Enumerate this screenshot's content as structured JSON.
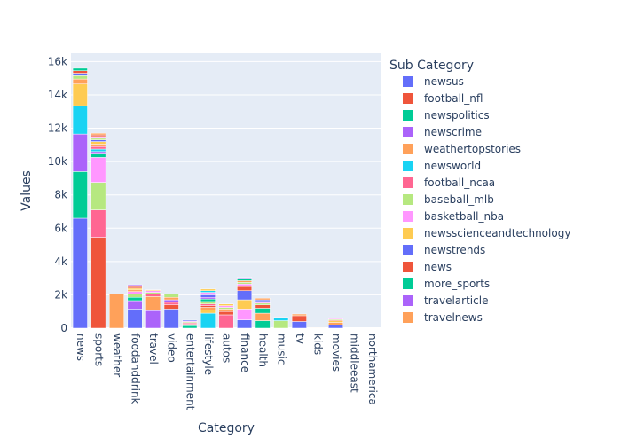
{
  "chart_data": {
    "type": "bar",
    "barmode": "stack",
    "xlabel": "Category",
    "ylabel": "Values",
    "legend_title": "Sub Category",
    "legend_position": "right",
    "ylim": [
      0,
      16500
    ],
    "yticks": [
      0,
      2000,
      4000,
      6000,
      8000,
      10000,
      12000,
      14000,
      16000
    ],
    "ytick_labels": [
      "0",
      "2k",
      "4k",
      "6k",
      "8k",
      "10k",
      "12k",
      "14k",
      "16k"
    ],
    "grid": true,
    "plot_background": "#e5ecf6",
    "categories": [
      "news",
      "sports",
      "weather",
      "foodanddrink",
      "travel",
      "video",
      "entertainment",
      "lifestyle",
      "autos",
      "finance",
      "health",
      "music",
      "tv",
      "kids",
      "movies",
      "middleeast",
      "northamerica"
    ],
    "series": [
      {
        "name": "newsus",
        "color": "#636efa",
        "values": [
          6600,
          0,
          0,
          1150,
          0,
          0,
          0,
          0,
          0,
          500,
          0,
          0,
          0,
          0,
          200,
          0,
          0
        ]
      },
      {
        "name": "football_nfl",
        "color": "#EF553B",
        "values": [
          0,
          5450,
          0,
          0,
          0,
          0,
          0,
          0,
          0,
          0,
          0,
          0,
          0,
          0,
          0,
          0,
          0
        ]
      },
      {
        "name": "newspolitics",
        "color": "#00cc96",
        "values": [
          2800,
          0,
          0,
          0,
          0,
          0,
          0,
          0,
          0,
          0,
          0,
          0,
          0,
          0,
          0,
          0,
          0
        ]
      },
      {
        "name": "newscrime",
        "color": "#ab63fa",
        "values": [
          2250,
          0,
          0,
          0,
          0,
          0,
          0,
          0,
          0,
          0,
          0,
          0,
          0,
          0,
          0,
          0,
          0
        ]
      },
      {
        "name": "weathertopstories",
        "color": "#FFA15A",
        "values": [
          0,
          0,
          2050,
          0,
          0,
          0,
          0,
          0,
          0,
          0,
          0,
          0,
          0,
          0,
          0,
          0,
          0
        ]
      },
      {
        "name": "newsworld",
        "color": "#19d3f3",
        "values": [
          1700,
          0,
          0,
          0,
          0,
          0,
          0,
          0,
          0,
          0,
          0,
          0,
          0,
          0,
          0,
          0,
          0
        ]
      },
      {
        "name": "football_ncaa",
        "color": "#FF6692",
        "values": [
          0,
          1650,
          0,
          0,
          0,
          0,
          0,
          0,
          0,
          0,
          0,
          0,
          0,
          0,
          0,
          0,
          0
        ]
      },
      {
        "name": "baseball_mlb",
        "color": "#B6E880",
        "values": [
          0,
          1650,
          0,
          0,
          0,
          0,
          0,
          0,
          0,
          0,
          0,
          0,
          0,
          0,
          0,
          0,
          0
        ]
      },
      {
        "name": "basketball_nba",
        "color": "#FF97FF",
        "values": [
          0,
          1500,
          0,
          0,
          0,
          0,
          0,
          0,
          0,
          0,
          0,
          0,
          0,
          0,
          0,
          0,
          0
        ]
      },
      {
        "name": "newsscienceandtechnology",
        "color": "#FECB52",
        "values": [
          1300,
          0,
          0,
          0,
          0,
          0,
          0,
          0,
          0,
          0,
          0,
          0,
          0,
          0,
          0,
          0,
          0
        ]
      },
      {
        "name": "newstrends",
        "color": "#636efa",
        "values": [
          0,
          0,
          0,
          0,
          0,
          0,
          0,
          0,
          0,
          0,
          0,
          0,
          0,
          0,
          0,
          0,
          0
        ]
      },
      {
        "name": "news",
        "color": "#EF553B",
        "values": [
          0,
          0,
          0,
          0,
          0,
          0,
          0,
          0,
          0,
          0,
          0,
          0,
          0,
          0,
          0,
          0,
          0
        ]
      },
      {
        "name": "more_sports",
        "color": "#00cc96",
        "values": [
          0,
          0,
          0,
          0,
          0,
          0,
          0,
          0,
          0,
          0,
          0,
          0,
          0,
          0,
          0,
          0,
          0
        ]
      },
      {
        "name": "travelarticle",
        "color": "#ab63fa",
        "values": [
          0,
          0,
          0,
          0,
          0,
          0,
          0,
          0,
          0,
          0,
          0,
          0,
          0,
          0,
          0,
          0,
          0
        ]
      },
      {
        "name": "travelnews",
        "color": "#FFA15A",
        "values": [
          0,
          0,
          0,
          0,
          0,
          0,
          0,
          0,
          0,
          0,
          0,
          0,
          0,
          0,
          0,
          0,
          0
        ]
      }
    ],
    "other_segments": [
      {
        "category": "news",
        "color": "#FFA15A",
        "value": 300
      },
      {
        "category": "news",
        "color": "#B6E880",
        "value": 200
      },
      {
        "category": "news",
        "color": "#636efa",
        "value": 150
      },
      {
        "category": "news",
        "color": "#EF553B",
        "value": 150
      },
      {
        "category": "news",
        "color": "#00cc96",
        "value": 150
      },
      {
        "category": "sports",
        "color": "#00cc96",
        "value": 200
      },
      {
        "category": "sports",
        "color": "#ab63fa",
        "value": 150
      },
      {
        "category": "sports",
        "color": "#19d3f3",
        "value": 150
      },
      {
        "category": "sports",
        "color": "#FF6692",
        "value": 150
      },
      {
        "category": "sports",
        "color": "#FFA15A",
        "value": 150
      },
      {
        "category": "sports",
        "color": "#FECB52",
        "value": 150
      },
      {
        "category": "sports",
        "color": "#636efa",
        "value": 100
      },
      {
        "category": "sports",
        "color": "#B6E880",
        "value": 100
      },
      {
        "category": "sports",
        "color": "#FF97FF",
        "value": 100
      },
      {
        "category": "sports",
        "color": "#EF553B",
        "value": 100
      },
      {
        "category": "sports",
        "color": "#FFA15A",
        "value": 100
      },
      {
        "category": "foodanddrink",
        "color": "#ab63fa",
        "value": 500
      },
      {
        "category": "foodanddrink",
        "color": "#00cc96",
        "value": 200
      },
      {
        "category": "foodanddrink",
        "color": "#B6E880",
        "value": 200
      },
      {
        "category": "foodanddrink",
        "color": "#FF97FF",
        "value": 150
      },
      {
        "category": "foodanddrink",
        "color": "#FFA15A",
        "value": 100
      },
      {
        "category": "foodanddrink",
        "color": "#FECB52",
        "value": 100
      },
      {
        "category": "foodanddrink",
        "color": "#EF553B",
        "value": 100
      },
      {
        "category": "foodanddrink",
        "color": "#ab63fa",
        "value": 100
      },
      {
        "category": "travel",
        "color": "#ab63fa",
        "value": 1050
      },
      {
        "category": "travel",
        "color": "#FFA15A",
        "value": 850
      },
      {
        "category": "travel",
        "color": "#FF6692",
        "value": 150
      },
      {
        "category": "travel",
        "color": "#B6E880",
        "value": 100
      },
      {
        "category": "travel",
        "color": "#FF97FF",
        "value": 100
      },
      {
        "category": "travel",
        "color": "#FECB52",
        "value": 50
      },
      {
        "category": "video",
        "color": "#636efa",
        "value": 1150
      },
      {
        "category": "video",
        "color": "#EF553B",
        "value": 250
      },
      {
        "category": "video",
        "color": "#FF6692",
        "value": 150
      },
      {
        "category": "video",
        "color": "#ab63fa",
        "value": 150
      },
      {
        "category": "video",
        "color": "#FFA15A",
        "value": 150
      },
      {
        "category": "video",
        "color": "#B6E880",
        "value": 200
      },
      {
        "category": "entertainment",
        "color": "#00cc96",
        "value": 150
      },
      {
        "category": "entertainment",
        "color": "#FFA15A",
        "value": 80
      },
      {
        "category": "entertainment",
        "color": "#FF6692",
        "value": 80
      },
      {
        "category": "entertainment",
        "color": "#B6E880",
        "value": 60
      },
      {
        "category": "entertainment",
        "color": "#FF97FF",
        "value": 50
      },
      {
        "category": "entertainment",
        "color": "#636efa",
        "value": 60
      },
      {
        "category": "lifestyle",
        "color": "#19d3f3",
        "value": 900
      },
      {
        "category": "lifestyle",
        "color": "#FECB52",
        "value": 200
      },
      {
        "category": "lifestyle",
        "color": "#FFA15A",
        "value": 150
      },
      {
        "category": "lifestyle",
        "color": "#EF553B",
        "value": 100
      },
      {
        "category": "lifestyle",
        "color": "#FF6692",
        "value": 100
      },
      {
        "category": "lifestyle",
        "color": "#B6E880",
        "value": 150
      },
      {
        "category": "lifestyle",
        "color": "#00cc96",
        "value": 150
      },
      {
        "category": "lifestyle",
        "color": "#ab63fa",
        "value": 100
      },
      {
        "category": "lifestyle",
        "color": "#636efa",
        "value": 150
      },
      {
        "category": "lifestyle",
        "color": "#FF97FF",
        "value": 150
      },
      {
        "category": "lifestyle",
        "color": "#19d3f3",
        "value": 100
      },
      {
        "category": "lifestyle",
        "color": "#FECB52",
        "value": 100
      },
      {
        "category": "autos",
        "color": "#FF6692",
        "value": 800
      },
      {
        "category": "autos",
        "color": "#EF553B",
        "value": 200
      },
      {
        "category": "autos",
        "color": "#FFA15A",
        "value": 150
      },
      {
        "category": "autos",
        "color": "#B6E880",
        "value": 100
      },
      {
        "category": "autos",
        "color": "#FF97FF",
        "value": 100
      },
      {
        "category": "autos",
        "color": "#FECB52",
        "value": 100
      },
      {
        "category": "finance",
        "color": "#FF97FF",
        "value": 650
      },
      {
        "category": "finance",
        "color": "#FECB52",
        "value": 550
      },
      {
        "category": "finance",
        "color": "#636efa",
        "value": 550
      },
      {
        "category": "finance",
        "color": "#EF553B",
        "value": 250
      },
      {
        "category": "finance",
        "color": "#FF97FF",
        "value": 150
      },
      {
        "category": "finance",
        "color": "#B6E880",
        "value": 100
      },
      {
        "category": "finance",
        "color": "#FFA15A",
        "value": 100
      },
      {
        "category": "finance",
        "color": "#00cc96",
        "value": 100
      },
      {
        "category": "finance",
        "color": "#ab63fa",
        "value": 100
      },
      {
        "category": "health",
        "color": "#00cc96",
        "value": 450
      },
      {
        "category": "health",
        "color": "#FFA15A",
        "value": 450
      },
      {
        "category": "health",
        "color": "#00cc96",
        "value": 300
      },
      {
        "category": "health",
        "color": "#EF553B",
        "value": 200
      },
      {
        "category": "health",
        "color": "#B6E880",
        "value": 100
      },
      {
        "category": "health",
        "color": "#FF97FF",
        "value": 100
      },
      {
        "category": "health",
        "color": "#636efa",
        "value": 100
      },
      {
        "category": "health",
        "color": "#FFA15A",
        "value": 100
      },
      {
        "category": "music",
        "color": "#B6E880",
        "value": 450
      },
      {
        "category": "music",
        "color": "#19d3f3",
        "value": 200
      },
      {
        "category": "tv",
        "color": "#636efa",
        "value": 400
      },
      {
        "category": "tv",
        "color": "#EF553B",
        "value": 350
      },
      {
        "category": "tv",
        "color": "#FFA15A",
        "value": 100
      },
      {
        "category": "kids",
        "color": "#FFA15A",
        "value": 5
      },
      {
        "category": "movies",
        "color": "#FFA15A",
        "value": 150
      },
      {
        "category": "movies",
        "color": "#FECB52",
        "value": 100
      },
      {
        "category": "movies",
        "color": "#EF553B",
        "value": 50
      },
      {
        "category": "movies",
        "color": "#B6E880",
        "value": 50
      },
      {
        "category": "movies",
        "color": "#FF97FF",
        "value": 50
      }
    ]
  }
}
